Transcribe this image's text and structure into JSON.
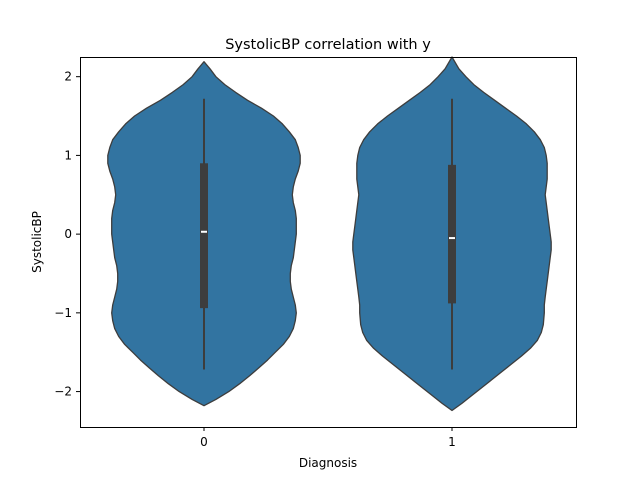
{
  "chart_data": {
    "type": "violin",
    "title": "SystolicBP correlation with y",
    "xlabel": "Diagnosis",
    "ylabel": "SystolicBP",
    "categories": [
      "0",
      "1"
    ],
    "ylim": [
      -2.45,
      2.25
    ],
    "yticks": [
      -2,
      -1,
      0,
      1,
      2
    ],
    "ytick_labels": [
      "−2",
      "−1",
      "0",
      "1",
      "2"
    ],
    "grid": false,
    "legend": "none",
    "colors": {
      "violin": "#3274a1",
      "outline": "#3d3d3d",
      "box": "#3d3d3d",
      "median": "#ffffff",
      "axes": "#000000"
    },
    "violins": [
      {
        "category": "0",
        "y_min": -2.18,
        "y_max": 2.19,
        "whisker_low": -1.72,
        "q1": -0.94,
        "median": 0.03,
        "q3": 0.9,
        "whisker_high": 1.72,
        "density_profile": [
          [
            -2.18,
            0.0
          ],
          [
            -2.1,
            0.12
          ],
          [
            -2.0,
            0.25
          ],
          [
            -1.9,
            0.36
          ],
          [
            -1.8,
            0.46
          ],
          [
            -1.7,
            0.55
          ],
          [
            -1.6,
            0.64
          ],
          [
            -1.5,
            0.72
          ],
          [
            -1.4,
            0.8
          ],
          [
            -1.3,
            0.86
          ],
          [
            -1.2,
            0.9
          ],
          [
            -1.1,
            0.92
          ],
          [
            -1.0,
            0.93
          ],
          [
            -0.9,
            0.92
          ],
          [
            -0.8,
            0.9
          ],
          [
            -0.7,
            0.88
          ],
          [
            -0.6,
            0.87
          ],
          [
            -0.5,
            0.87
          ],
          [
            -0.4,
            0.88
          ],
          [
            -0.3,
            0.9
          ],
          [
            -0.2,
            0.91
          ],
          [
            -0.1,
            0.92
          ],
          [
            0.0,
            0.93
          ],
          [
            0.1,
            0.93
          ],
          [
            0.2,
            0.93
          ],
          [
            0.3,
            0.92
          ],
          [
            0.4,
            0.9
          ],
          [
            0.5,
            0.89
          ],
          [
            0.6,
            0.9
          ],
          [
            0.7,
            0.92
          ],
          [
            0.8,
            0.95
          ],
          [
            0.9,
            0.97
          ],
          [
            1.0,
            0.97
          ],
          [
            1.1,
            0.95
          ],
          [
            1.2,
            0.92
          ],
          [
            1.3,
            0.86
          ],
          [
            1.4,
            0.79
          ],
          [
            1.5,
            0.7
          ],
          [
            1.6,
            0.58
          ],
          [
            1.7,
            0.44
          ],
          [
            1.8,
            0.32
          ],
          [
            1.9,
            0.21
          ],
          [
            2.0,
            0.12
          ],
          [
            2.1,
            0.06
          ],
          [
            2.19,
            0.0
          ]
        ]
      },
      {
        "category": "1",
        "y_min": -2.24,
        "y_max": 2.25,
        "whisker_low": -1.72,
        "q1": -0.88,
        "median": -0.05,
        "q3": 0.88,
        "whisker_high": 1.72,
        "density_profile": [
          [
            -2.24,
            0.0
          ],
          [
            -2.15,
            0.1
          ],
          [
            -2.05,
            0.2
          ],
          [
            -1.95,
            0.3
          ],
          [
            -1.85,
            0.4
          ],
          [
            -1.75,
            0.5
          ],
          [
            -1.65,
            0.6
          ],
          [
            -1.55,
            0.7
          ],
          [
            -1.45,
            0.79
          ],
          [
            -1.35,
            0.86
          ],
          [
            -1.25,
            0.9
          ],
          [
            -1.15,
            0.92
          ],
          [
            -1.0,
            0.93
          ],
          [
            -0.9,
            0.93
          ],
          [
            -0.8,
            0.94
          ],
          [
            -0.7,
            0.95
          ],
          [
            -0.6,
            0.96
          ],
          [
            -0.5,
            0.97
          ],
          [
            -0.4,
            0.98
          ],
          [
            -0.3,
            0.99
          ],
          [
            -0.2,
            1.0
          ],
          [
            -0.1,
            1.0
          ],
          [
            0.0,
            0.99
          ],
          [
            0.1,
            0.98
          ],
          [
            0.2,
            0.97
          ],
          [
            0.3,
            0.96
          ],
          [
            0.4,
            0.95
          ],
          [
            0.5,
            0.94
          ],
          [
            0.6,
            0.95
          ],
          [
            0.7,
            0.96
          ],
          [
            0.8,
            0.96
          ],
          [
            0.9,
            0.96
          ],
          [
            1.0,
            0.95
          ],
          [
            1.1,
            0.93
          ],
          [
            1.2,
            0.89
          ],
          [
            1.3,
            0.83
          ],
          [
            1.4,
            0.75
          ],
          [
            1.5,
            0.65
          ],
          [
            1.6,
            0.54
          ],
          [
            1.7,
            0.43
          ],
          [
            1.8,
            0.32
          ],
          [
            1.9,
            0.22
          ],
          [
            2.0,
            0.14
          ],
          [
            2.1,
            0.07
          ],
          [
            2.25,
            0.0
          ]
        ]
      }
    ]
  }
}
